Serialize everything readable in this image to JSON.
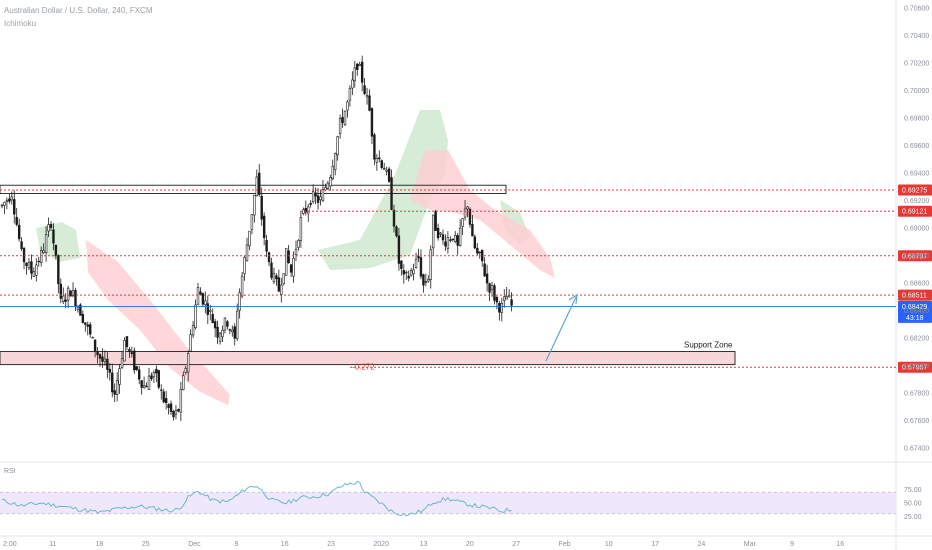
{
  "header": {
    "symbol": "Australian Dollar / U.S. Dollar, 240, FXCM",
    "indicator": "Ichimoku"
  },
  "colors": {
    "up_candle": "#ffffff",
    "down_candle": "#1b1b1b",
    "level_line": "#e53935",
    "support_zone": "#f8d7da",
    "current_price": "#2962ff",
    "projection_arrow": "#5a9bd5",
    "cloud_bull": "#c8e6c9",
    "cloud_bear": "#ffcdd2",
    "rsi_line": "#5fb3c9",
    "rsi_band": "#efe7fb"
  },
  "chart_data": [
    {
      "type": "candlestick",
      "title": "Australian Dollar / U.S. Dollar, 240, FXCM",
      "ylim": [
        0.674,
        0.7062
      ],
      "price_ticks": [
        "0.67400",
        "0.67600",
        "0.67800",
        "0.68000",
        "0.68200",
        "0.68400",
        "0.68600",
        "0.68800",
        "0.69000",
        "0.69200",
        "0.69400",
        "0.69600",
        "0.69800",
        "0.70000",
        "0.70200",
        "0.70400",
        "0.70600"
      ],
      "time_ticks": [
        "2:00",
        "11",
        "18",
        "25",
        "Dec",
        "9",
        "16",
        "23",
        "2020",
        "13",
        "20",
        "27",
        "Feb",
        "10",
        "17",
        "24",
        "Mar",
        "9",
        "16"
      ],
      "levels": [
        {
          "label": "0.69275",
          "value": 0.69275
        },
        {
          "label": "0.69121",
          "value": 0.69121
        },
        {
          "label": "0.68797",
          "value": 0.68797
        },
        {
          "label": "0.68511",
          "value": 0.68511
        },
        {
          "label": "0.67987",
          "value": 0.67987
        }
      ],
      "current_price": {
        "label": "0.68429",
        "value": 0.68429,
        "countdown": "43:18"
      },
      "resistance_band": [
        0.6925,
        0.6931
      ],
      "support_zone": {
        "label": "Support Zone",
        "range": [
          0.68006,
          0.68101
        ]
      },
      "fib_label": "-0.272",
      "close_path": [
        [
          0,
          0.6916
        ],
        [
          4,
          0.6926
        ],
        [
          8,
          0.688
        ],
        [
          12,
          0.6868
        ],
        [
          16,
          0.688
        ],
        [
          20,
          0.6905
        ],
        [
          24,
          0.6845
        ],
        [
          28,
          0.6855
        ],
        [
          32,
          0.684
        ],
        [
          38,
          0.6812
        ],
        [
          42,
          0.68
        ],
        [
          46,
          0.678
        ],
        [
          50,
          0.6818
        ],
        [
          54,
          0.68
        ],
        [
          58,
          0.6785
        ],
        [
          62,
          0.6795
        ],
        [
          66,
          0.6775
        ],
        [
          70,
          0.6762
        ],
        [
          72,
          0.6768
        ],
        [
          76,
          0.681
        ],
        [
          80,
          0.6855
        ],
        [
          84,
          0.6842
        ],
        [
          88,
          0.6824
        ],
        [
          92,
          0.6832
        ],
        [
          95,
          0.6818
        ],
        [
          96,
          0.6842
        ],
        [
          100,
          0.6888
        ],
        [
          104,
          0.6935
        ],
        [
          108,
          0.688
        ],
        [
          111,
          0.6862
        ],
        [
          113,
          0.6855
        ],
        [
          116,
          0.688
        ],
        [
          118,
          0.6868
        ],
        [
          122,
          0.6905
        ],
        [
          126,
          0.6922
        ],
        [
          130,
          0.692
        ],
        [
          134,
          0.694
        ],
        [
          138,
          0.6975
        ],
        [
          141,
          0.699
        ],
        [
          143,
          0.7005
        ],
        [
          145,
          0.702
        ],
        [
          147,
          0.7008
        ],
        [
          150,
          0.6985
        ],
        [
          152,
          0.6955
        ],
        [
          156,
          0.6945
        ],
        [
          158,
          0.693
        ],
        [
          160,
          0.6905
        ],
        [
          162,
          0.6875
        ],
        [
          164,
          0.6862
        ],
        [
          166,
          0.6865
        ],
        [
          170,
          0.6878
        ],
        [
          172,
          0.6858
        ],
        [
          174,
          0.6865
        ],
        [
          176,
          0.6905
        ],
        [
          180,
          0.689
        ],
        [
          184,
          0.6895
        ],
        [
          186,
          0.6885
        ],
        [
          188,
          0.6905
        ],
        [
          190,
          0.6918
        ],
        [
          192,
          0.689
        ],
        [
          194,
          0.688
        ],
        [
          196,
          0.6875
        ],
        [
          198,
          0.686
        ],
        [
          200,
          0.6855
        ],
        [
          202,
          0.6845
        ],
        [
          204,
          0.6842
        ],
        [
          206,
          0.685
        ],
        [
          208,
          0.6843
        ]
      ],
      "rsi": {
        "label": "RSI",
        "ylim": [
          0,
          100
        ],
        "ticks": [
          "75.00",
          "50.00",
          "25.00"
        ],
        "band": [
          30,
          70
        ],
        "values_path": [
          [
            0,
            55
          ],
          [
            8,
            45
          ],
          [
            16,
            50
          ],
          [
            24,
            44
          ],
          [
            32,
            38
          ],
          [
            40,
            32
          ],
          [
            48,
            40
          ],
          [
            56,
            44
          ],
          [
            62,
            40
          ],
          [
            68,
            36
          ],
          [
            72,
            38
          ],
          [
            76,
            60
          ],
          [
            80,
            72
          ],
          [
            86,
            55
          ],
          [
            92,
            52
          ],
          [
            96,
            64
          ],
          [
            100,
            78
          ],
          [
            104,
            82
          ],
          [
            110,
            55
          ],
          [
            116,
            50
          ],
          [
            122,
            60
          ],
          [
            128,
            62
          ],
          [
            134,
            68
          ],
          [
            138,
            80
          ],
          [
            142,
            86
          ],
          [
            146,
            88
          ],
          [
            148,
            70
          ],
          [
            152,
            58
          ],
          [
            156,
            45
          ],
          [
            160,
            32
          ],
          [
            166,
            28
          ],
          [
            172,
            36
          ],
          [
            176,
            52
          ],
          [
            182,
            58
          ],
          [
            188,
            50
          ],
          [
            194,
            44
          ],
          [
            200,
            40
          ],
          [
            204,
            35
          ],
          [
            208,
            38
          ]
        ]
      }
    }
  ]
}
